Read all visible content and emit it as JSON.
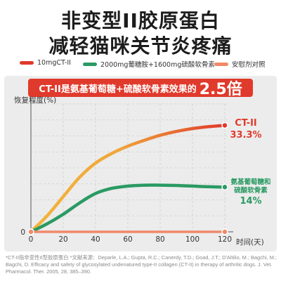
{
  "headline": {
    "line1": "非变型II胶原蛋白",
    "line2": "减轻猫咪关节炎疼痛"
  },
  "colors": {
    "ct2": "#e03a2c",
    "combo": "#2a9a63",
    "placebo": "#f0896a",
    "gradient_line": "#f3b43c"
  },
  "banner": {
    "text": "CT-II是氨基葡萄糖+硫酸软骨素效果的",
    "highlight": "2.5倍"
  },
  "chart_data": {
    "type": "line",
    "ylabel": "恢复程度(%)",
    "xlabel": "时间(天)",
    "xlim": [
      0,
      120
    ],
    "ylim": [
      0,
      40
    ],
    "xticks": [
      0,
      20,
      40,
      60,
      80,
      100,
      120
    ],
    "grid": true,
    "legend_position": "top",
    "series": [
      {
        "name": "10mgCT-II",
        "color": "#e03a2c",
        "x": [
          0,
          10,
          20,
          30,
          40,
          50,
          60,
          70,
          80,
          90,
          100,
          110,
          120
        ],
        "y": [
          0,
          5,
          11,
          17,
          21.5,
          24.5,
          26.8,
          28.6,
          30.2,
          31.4,
          32.3,
          32.9,
          33.3
        ]
      },
      {
        "name": "2000mg葡糖胺+1600mg硫酸软骨素",
        "color": "#2a9a63",
        "x": [
          0,
          10,
          20,
          30,
          40,
          50,
          60,
          70,
          80,
          90,
          100,
          110,
          120
        ],
        "y": [
          0,
          2.5,
          5.5,
          9,
          12,
          13.6,
          14.3,
          14.6,
          14.6,
          14.5,
          14.3,
          14.1,
          14.0
        ]
      },
      {
        "name": "安慰剂对照",
        "color": "#f0896a",
        "x": [
          0,
          120
        ],
        "y": [
          0,
          0
        ]
      }
    ],
    "annotations": [
      {
        "series": "10mgCT-II",
        "label": "CT-II",
        "value": "33.3%"
      },
      {
        "series": "2000mg葡糖胺+1600mg硫酸软骨素",
        "label": "氨基葡萄糖和\n硫酸软骨素",
        "value": "14%"
      }
    ]
  },
  "footnote": {
    "text": "*CT-II指非变性II型胶原蛋白      *文献来源：Deparle, L.A.; Gupta, R.C.; Canerdy, T.D.; Goad, J.T.; D'Altilio, M.; Bagchi, M.; Bagchi, D. Efficacy and safety of glycosylated undenatured type-II collagen (CT-II) in therapy of arthritic dogs. J. Vet. Pharmacol. Ther. 2005, 28, 385–390."
  }
}
